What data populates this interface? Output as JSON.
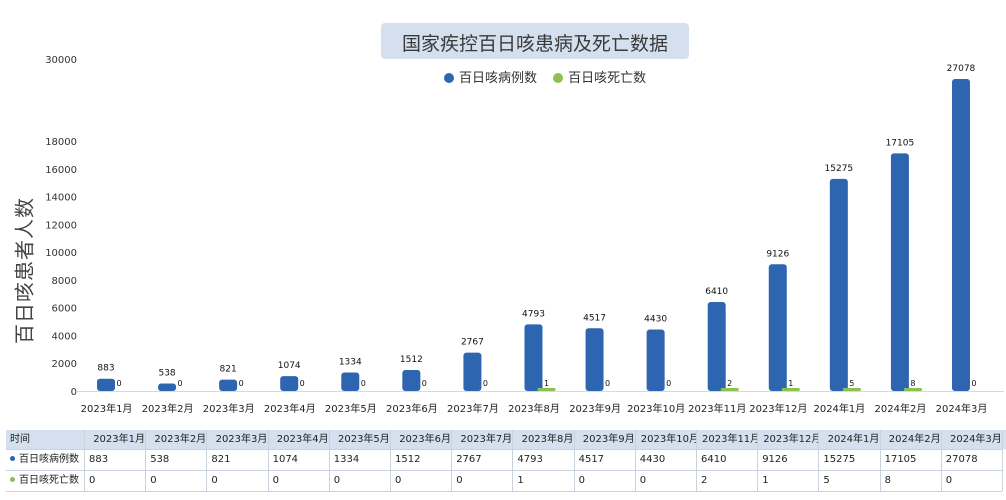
{
  "chart_data": {
    "type": "bar",
    "title": "国家疾控百日咳患病及死亡数据",
    "ylabel": "百日咳患者人数",
    "categories": [
      "2023年1月",
      "2023年2月",
      "2023年3月",
      "2023年4月",
      "2023年5月",
      "2023年6月",
      "2023年7月",
      "2023年8月",
      "2023年9月",
      "2023年10月",
      "2023年11月",
      "2023年12月",
      "2024年1月",
      "2024年2月",
      "2024年3月"
    ],
    "series": [
      {
        "name": "百日咳病例数",
        "color": "#2e65b0",
        "values": [
          883,
          538,
          821,
          1074,
          1334,
          1512,
          2767,
          4793,
          4517,
          4430,
          6410,
          9126,
          15275,
          17105,
          27078
        ]
      },
      {
        "name": "百日咳死亡数",
        "color": "#8cc152",
        "values": [
          0,
          0,
          0,
          0,
          0,
          0,
          0,
          1,
          0,
          0,
          2,
          1,
          5,
          8,
          0
        ]
      }
    ],
    "yticks": [
      0,
      2000,
      4000,
      6000,
      8000,
      10000,
      12000,
      14000,
      16000,
      18000,
      30000
    ],
    "axis_break": [
      18000,
      30000
    ],
    "legend": "top-center",
    "grid": false
  },
  "table": {
    "corner_label": "时间"
  }
}
